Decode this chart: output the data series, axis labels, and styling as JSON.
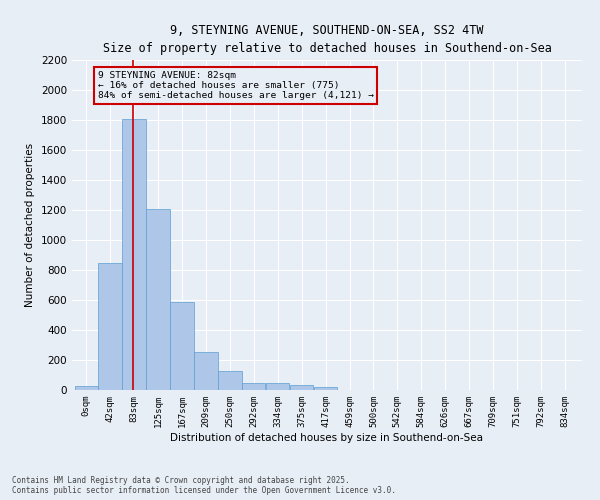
{
  "title_line1": "9, STEYNING AVENUE, SOUTHEND-ON-SEA, SS2 4TW",
  "title_line2": "Size of property relative to detached houses in Southend-on-Sea",
  "xlabel": "Distribution of detached houses by size in Southend-on-Sea",
  "ylabel": "Number of detached properties",
  "bar_labels": [
    "0sqm",
    "42sqm",
    "83sqm",
    "125sqm",
    "167sqm",
    "209sqm",
    "250sqm",
    "292sqm",
    "334sqm",
    "375sqm",
    "417sqm",
    "459sqm",
    "500sqm",
    "542sqm",
    "584sqm",
    "626sqm",
    "667sqm",
    "709sqm",
    "751sqm",
    "792sqm",
    "834sqm"
  ],
  "bar_values": [
    25,
    845,
    1810,
    1210,
    590,
    255,
    130,
    50,
    48,
    32,
    18,
    0,
    0,
    0,
    0,
    0,
    0,
    0,
    0,
    0,
    0
  ],
  "bar_color": "#aec6e8",
  "bar_edge_color": "#5a9fd4",
  "ylim": [
    0,
    2200
  ],
  "yticks": [
    0,
    200,
    400,
    600,
    800,
    1000,
    1200,
    1400,
    1600,
    1800,
    2000,
    2200
  ],
  "annotation_text": "9 STEYNING AVENUE: 82sqm\n← 16% of detached houses are smaller (775)\n84% of semi-detached houses are larger (4,121) →",
  "annotation_box_color": "#cc0000",
  "property_size_sqm": 82,
  "bin_width": 42,
  "footer_line1": "Contains HM Land Registry data © Crown copyright and database right 2025.",
  "footer_line2": "Contains public sector information licensed under the Open Government Licence v3.0.",
  "background_color": "#e8eef6",
  "grid_color": "#ffffff",
  "vline_color": "#cc0000"
}
